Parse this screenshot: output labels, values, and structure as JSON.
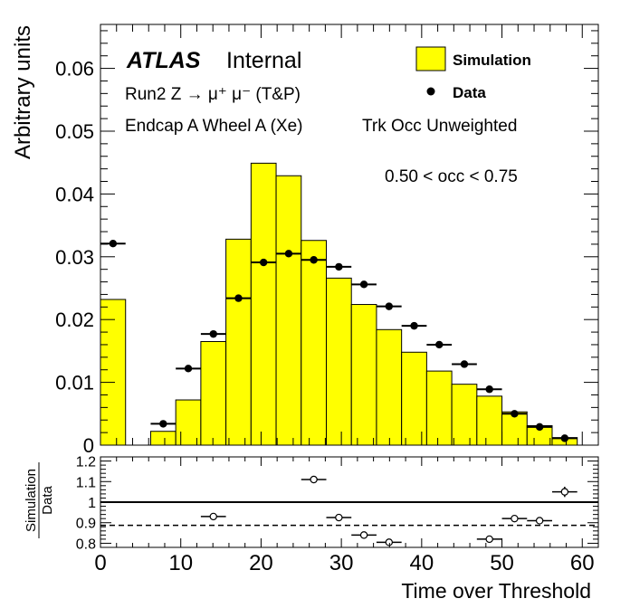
{
  "chart_data": [
    {
      "type": "bar",
      "panel": "main",
      "ylabel": "Arbitrary units",
      "xlim": [
        0,
        62
      ],
      "ylim": [
        0,
        0.067
      ],
      "yticks": [
        0,
        0.01,
        0.02,
        0.03,
        0.04,
        0.05,
        0.06
      ],
      "ytick_labels": [
        "0",
        "0.01",
        "0.02",
        "0.03",
        "0.04",
        "0.05",
        "0.06"
      ],
      "bin_edges": [
        0,
        3.125,
        6.25,
        9.375,
        12.5,
        15.625,
        18.75,
        21.875,
        25,
        28.125,
        31.25,
        34.375,
        37.5,
        40.625,
        43.75,
        46.875,
        50,
        53.125,
        56.25,
        59.375
      ],
      "series": [
        {
          "name": "Simulation",
          "style": "filled-histogram",
          "color": "#ffff00",
          "values": [
            0.0232,
            0,
            0.0022,
            0.0072,
            0.0165,
            0.0328,
            0.0449,
            0.0429,
            0.0326,
            0.0266,
            0.0224,
            0.0184,
            0.0148,
            0.0118,
            0.0097,
            0.0078,
            0.0053,
            0.0031,
            0.0012
          ]
        },
        {
          "name": "Data",
          "style": "markers",
          "color": "#000000",
          "x": [
            1.5625,
            7.8125,
            10.9375,
            14.0625,
            17.1875,
            20.3125,
            23.4375,
            26.5625,
            29.6875,
            32.8125,
            35.9375,
            39.0625,
            42.1875,
            45.3125,
            48.4375,
            51.5625,
            54.6875,
            57.8125
          ],
          "values": [
            0.0321,
            0.0034,
            0.0122,
            0.0177,
            0.0234,
            0.0291,
            0.0305,
            0.0295,
            0.0284,
            0.0256,
            0.0221,
            0.019,
            0.016,
            0.0129,
            0.0089,
            0.005,
            0.0029,
            0.0011
          ]
        }
      ],
      "legend_position": "top-right",
      "annotations": {
        "atlas": "ATLAS",
        "internal": "Internal",
        "selection": "Run2 Z → μ⁺ μ⁻ (T&P)",
        "region": "Endcap A Wheel A (Xe)",
        "weighting": "Trk Occ Unweighted",
        "occupancy": "0.50 < occ < 0.75"
      }
    },
    {
      "type": "scatter",
      "panel": "ratio",
      "ylabel_numerator": "Simulation",
      "ylabel_denominator": "Data",
      "xlabel": "Time over Threshold",
      "xlim": [
        0,
        62
      ],
      "xticks": [
        0,
        10,
        20,
        30,
        40,
        50,
        60
      ],
      "xtick_labels": [
        "0",
        "10",
        "20",
        "30",
        "40",
        "50",
        "60"
      ],
      "ylim": [
        0.78,
        1.22
      ],
      "yticks": [
        0.8,
        0.9,
        1,
        1.1,
        1.2
      ],
      "ytick_labels": [
        "0.8",
        "0.9",
        "1",
        "1.1",
        "1.2"
      ],
      "reference_lines": [
        {
          "y": 1.0,
          "style": "solid"
        },
        {
          "y": 0.887,
          "style": "dashed"
        }
      ],
      "x": [
        14.0625,
        26.5625,
        29.6875,
        32.8125,
        35.9375,
        48.4375,
        51.5625,
        54.6875,
        57.8125
      ],
      "values": [
        0.93,
        1.11,
        0.925,
        0.84,
        0.805,
        0.82,
        0.92,
        0.91,
        1.05
      ],
      "yerr": [
        0.004,
        0.004,
        0.004,
        0.004,
        0.004,
        0.006,
        0.01,
        0.012,
        0.025
      ]
    }
  ]
}
